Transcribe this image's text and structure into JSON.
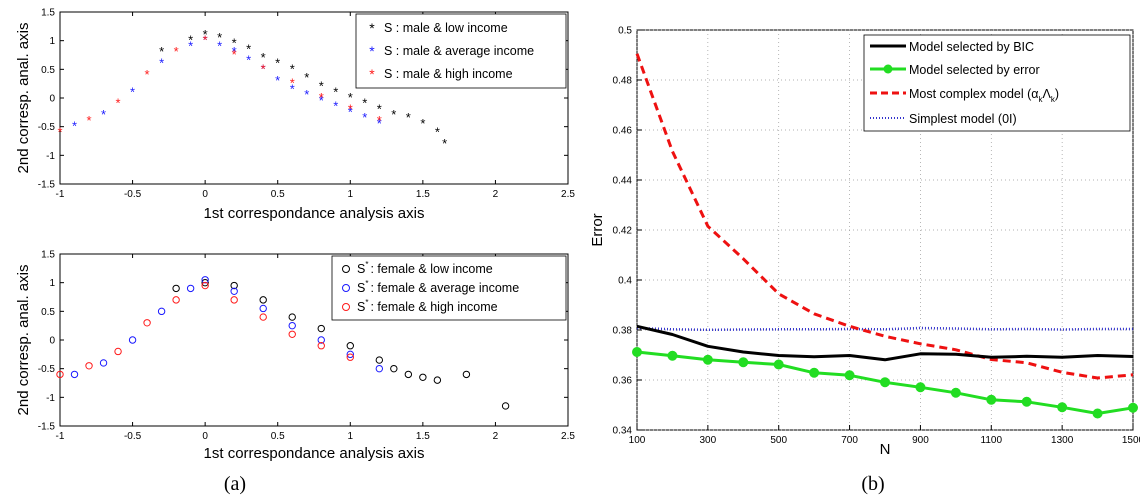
{
  "captions": {
    "left": "(a)",
    "right": "(b)"
  },
  "chart_data": [
    {
      "type": "scatter",
      "xlabel": "1st correspondance analysis axis",
      "ylabel": "2nd corresp. anal. axis",
      "xlim": [
        -1,
        2.5
      ],
      "ylim": [
        -1.5,
        1.5
      ],
      "xticks": [
        "-1",
        "-0.5",
        "0",
        "0.5",
        "1",
        "1.5",
        "2",
        "2.5"
      ],
      "yticks": [
        "-1.5",
        "-1",
        "-0.5",
        "0",
        "0.5",
        "1",
        "1.5"
      ],
      "marker": "asterisk",
      "legend_position": "top-right",
      "series": [
        {
          "name": "S : male & low income",
          "color": "#000000",
          "x": [
            -0.3,
            -0.1,
            0.0,
            0.1,
            0.2,
            0.3,
            0.4,
            0.5,
            0.6,
            0.7,
            0.8,
            0.9,
            1.0,
            1.1,
            1.2,
            1.3,
            1.4,
            1.5,
            1.6,
            1.65
          ],
          "y": [
            0.8,
            1.0,
            1.1,
            1.05,
            0.95,
            0.85,
            0.7,
            0.6,
            0.5,
            0.35,
            0.2,
            0.1,
            0.0,
            -0.1,
            -0.2,
            -0.3,
            -0.35,
            -0.45,
            -0.6,
            -0.8
          ]
        },
        {
          "name": "S : male & average income",
          "color": "#1a1aff",
          "x": [
            -0.9,
            -0.7,
            -0.5,
            -0.3,
            -0.1,
            0.0,
            0.1,
            0.2,
            0.3,
            0.4,
            0.5,
            0.6,
            0.7,
            0.8,
            0.9,
            1.0,
            1.1,
            1.2
          ],
          "y": [
            -0.5,
            -0.3,
            0.1,
            0.6,
            0.9,
            1.0,
            0.9,
            0.8,
            0.65,
            0.5,
            0.3,
            0.15,
            0.05,
            -0.05,
            -0.15,
            -0.25,
            -0.35,
            -0.45
          ]
        },
        {
          "name": "S : male & high income",
          "color": "#ff1a1a",
          "x": [
            -1.0,
            -0.8,
            -0.6,
            -0.4,
            -0.2,
            0.0,
            0.2,
            0.4,
            0.6,
            0.8,
            1.0,
            1.2
          ],
          "y": [
            -0.6,
            -0.4,
            -0.1,
            0.4,
            0.8,
            1.0,
            0.75,
            0.5,
            0.25,
            0.0,
            -0.2,
            -0.4
          ]
        }
      ]
    },
    {
      "type": "scatter",
      "xlabel": "1st correspondance analysis axis",
      "ylabel": "2nd corresp. anal. axis",
      "xlim": [
        -1,
        2.5
      ],
      "ylim": [
        -1.5,
        1.5
      ],
      "xticks": [
        "-1",
        "-0.5",
        "0",
        "0.5",
        "1",
        "1.5",
        "2",
        "2.5"
      ],
      "yticks": [
        "-1.5",
        "-1",
        "-0.5",
        "0",
        "0.5",
        "1",
        "1.5"
      ],
      "marker": "circle",
      "legend_position": "top-right",
      "series": [
        {
          "name": "S",
          "name_sup": "*",
          "name_rest": ": female & low income",
          "color": "#000000",
          "x": [
            -0.2,
            0.0,
            0.2,
            0.4,
            0.6,
            0.8,
            1.0,
            1.2,
            1.3,
            1.4,
            1.5,
            1.6,
            1.8,
            2.07
          ],
          "y": [
            0.9,
            1.0,
            0.95,
            0.7,
            0.4,
            0.2,
            -0.1,
            -0.35,
            -0.5,
            -0.6,
            -0.65,
            -0.7,
            -0.6,
            -1.15
          ]
        },
        {
          "name": "S",
          "name_sup": "*",
          "name_rest": ": female & average income",
          "color": "#1a1aff",
          "x": [
            -0.9,
            -0.7,
            -0.5,
            -0.3,
            -0.1,
            0.0,
            0.2,
            0.4,
            0.6,
            0.8,
            1.0,
            1.2
          ],
          "y": [
            -0.6,
            -0.4,
            0.0,
            0.5,
            0.9,
            1.05,
            0.85,
            0.55,
            0.25,
            0.0,
            -0.25,
            -0.5
          ]
        },
        {
          "name": "S",
          "name_sup": "*",
          "name_rest": ": female & high income",
          "color": "#ff1a1a",
          "x": [
            -1.0,
            -0.8,
            -0.6,
            -0.4,
            -0.2,
            0.0,
            0.2,
            0.4,
            0.6,
            0.8,
            1.0
          ],
          "y": [
            -0.6,
            -0.45,
            -0.2,
            0.3,
            0.7,
            0.95,
            0.7,
            0.4,
            0.1,
            -0.1,
            -0.3
          ]
        }
      ]
    },
    {
      "type": "line",
      "xlabel": "N",
      "ylabel": "Error",
      "xlim": [
        100,
        1500
      ],
      "ylim": [
        0.34,
        0.5
      ],
      "xticks": [
        "100",
        "300",
        "500",
        "700",
        "900",
        "1100",
        "1300",
        "1500"
      ],
      "yticks": [
        "0.34",
        "0.36",
        "0.38",
        "0.4",
        "0.42",
        "0.44",
        "0.46",
        "0.48",
        "0.5"
      ],
      "grid": true,
      "legend_position": "top-right",
      "x": [
        100,
        200,
        300,
        400,
        500,
        600,
        700,
        800,
        900,
        1000,
        1100,
        1200,
        1300,
        1400,
        1500
      ],
      "series": [
        {
          "name": "Model selected by BIC",
          "color": "#000000",
          "style": "solid",
          "values": [
            0.3815,
            0.3782,
            0.3735,
            0.3712,
            0.3698,
            0.3693,
            0.3698,
            0.3681,
            0.3705,
            0.3703,
            0.3691,
            0.3695,
            0.3691,
            0.3698,
            0.3694
          ]
        },
        {
          "name": "Model selected by error",
          "color": "#22dd22",
          "style": "solid-markers",
          "values": [
            0.3712,
            0.3697,
            0.3681,
            0.3671,
            0.3662,
            0.3629,
            0.3619,
            0.3591,
            0.3571,
            0.3549,
            0.3521,
            0.3513,
            0.3491,
            0.3466,
            0.3489
          ]
        },
        {
          "name": "Most complex model (α",
          "name_sub1": "k",
          "name_mid": "Λ",
          "name_sub2": "k",
          "name_end": ")",
          "color": "#ee1111",
          "style": "dashed",
          "values": [
            0.4905,
            0.4515,
            0.4215,
            0.4085,
            0.3945,
            0.3865,
            0.3815,
            0.3775,
            0.3745,
            0.3721,
            0.3682,
            0.3669,
            0.3631,
            0.3608,
            0.3621
          ]
        },
        {
          "name": "Simplest model (0I)",
          "color": "#3333cc",
          "style": "dotted",
          "values": [
            0.3808,
            0.3803,
            0.3801,
            0.3802,
            0.3803,
            0.3803,
            0.3804,
            0.3803,
            0.3808,
            0.3806,
            0.3803,
            0.3804,
            0.3802,
            0.3804,
            0.3804
          ]
        }
      ]
    }
  ]
}
